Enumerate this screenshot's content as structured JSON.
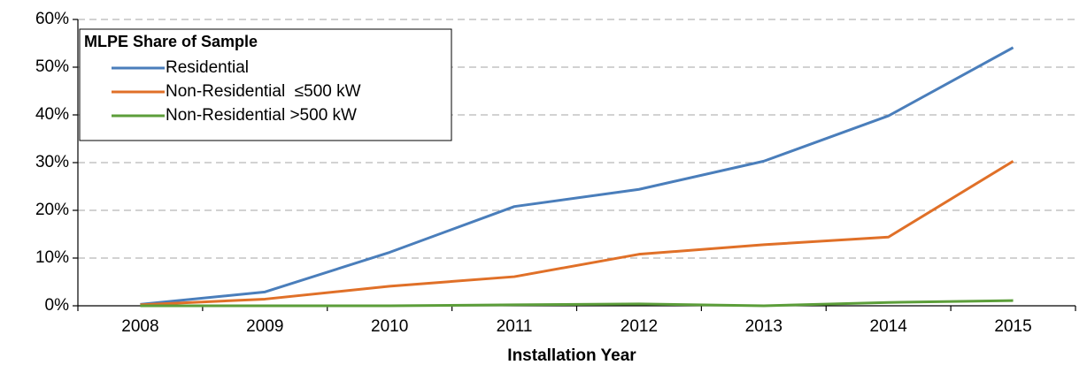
{
  "chart_data": {
    "type": "line",
    "legend_title": "MLPE Share of Sample",
    "x_label": "Installation Year",
    "categories": [
      "2008",
      "2009",
      "2010",
      "2011",
      "2012",
      "2013",
      "2014",
      "2015"
    ],
    "series": [
      {
        "name": "Residential",
        "color": "#4a7ebb",
        "values": [
          0.3,
          2.9,
          11.2,
          20.8,
          24.4,
          30.3,
          39.8,
          54.1
        ]
      },
      {
        "name": "Non-Residential  ≤500 kW",
        "color": "#e07028",
        "values": [
          0.2,
          1.4,
          4.1,
          6.1,
          10.8,
          12.8,
          14.4,
          30.3
        ]
      },
      {
        "name": "Non-Residential >500 kW",
        "color": "#5c9e3a",
        "values": [
          0,
          0,
          0,
          0.2,
          0.4,
          0,
          0.7,
          1.1
        ]
      }
    ],
    "ylim": [
      0,
      60
    ],
    "yticks": [
      {
        "value": 0,
        "label": "0%"
      },
      {
        "value": 10,
        "label": "10%"
      },
      {
        "value": 20,
        "label": "20%"
      },
      {
        "value": 30,
        "label": "30%"
      },
      {
        "value": 40,
        "label": "40%"
      },
      {
        "value": 50,
        "label": "50%"
      },
      {
        "value": 60,
        "label": "60%"
      }
    ],
    "grid": true,
    "legend": "top-left"
  }
}
